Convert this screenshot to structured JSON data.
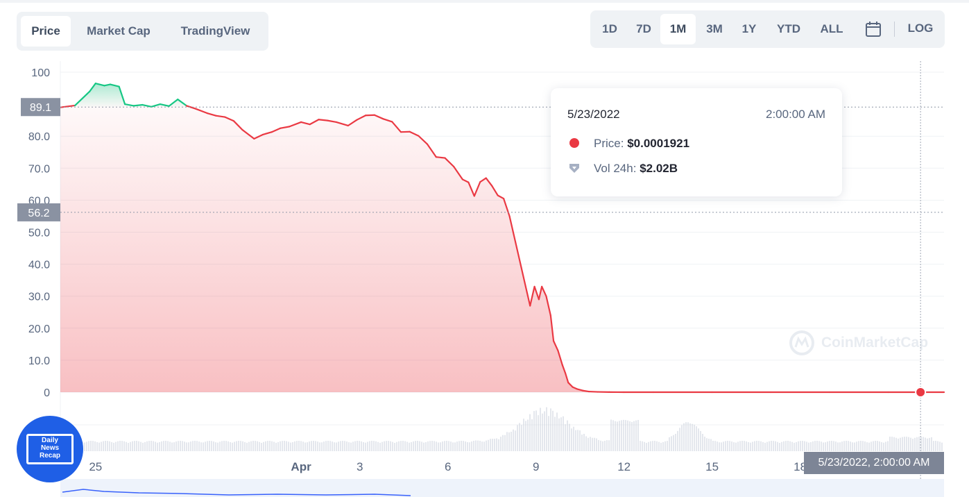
{
  "tabs": [
    {
      "label": "Price",
      "active": true
    },
    {
      "label": "Market Cap",
      "active": false
    },
    {
      "label": "TradingView",
      "active": false
    }
  ],
  "ranges": [
    {
      "label": "1D",
      "active": false
    },
    {
      "label": "7D",
      "active": false
    },
    {
      "label": "1M",
      "active": true
    },
    {
      "label": "3M",
      "active": false
    },
    {
      "label": "1Y",
      "active": false
    },
    {
      "label": "YTD",
      "active": false
    },
    {
      "label": "ALL",
      "active": false
    }
  ],
  "log_label": "LOG",
  "calendar_icon": "calendar-icon",
  "tooltip": {
    "date": "5/23/2022",
    "time": "2:00:00 AM",
    "price_label": "Price:",
    "price_value": "$0.0001921",
    "vol_label": "Vol 24h:",
    "vol_value": "$2.02B"
  },
  "watermark": "CoinMarketCap",
  "badge": {
    "line1": "Daily",
    "line2": "News",
    "line3": "Recap"
  },
  "hover_x_label": "5/23/2022, 2:00:00 AM",
  "colors": {
    "up": "#16c784",
    "down": "#ea3943",
    "grid": "#eff2f5",
    "text": "#58667e"
  },
  "chart_data": {
    "type": "line",
    "ylim": [
      0,
      100
    ],
    "y_ticks": [
      "100",
      "80.0",
      "70.0",
      "60.0",
      "50.0",
      "40.0",
      "30.0",
      "20.0",
      "10.0",
      "0"
    ],
    "y_tick_values": [
      100,
      80,
      70,
      60,
      50,
      40,
      30,
      20,
      10,
      0
    ],
    "x_ticks": [
      "25",
      "Apr",
      "3",
      "6",
      "9",
      "12",
      "15",
      "18"
    ],
    "x_tick_days": [
      25,
      32,
      34,
      37,
      40,
      43,
      46,
      49
    ],
    "xlim": [
      23.8,
      53.9
    ],
    "reference_lines": [
      {
        "label": "89.1",
        "value": 89.1
      },
      {
        "label": "56.2",
        "value": 56.2
      }
    ],
    "hover_point": {
      "day": 53.1,
      "value": 0.0001921
    },
    "series": [
      {
        "x": [
          23.8,
          24.3,
          24.8,
          25.0,
          25.3,
          25.5,
          25.8,
          26.0,
          26.3,
          26.6,
          26.9,
          27.2,
          27.5,
          27.8,
          28.1,
          28.4,
          28.8,
          29.1,
          29.4,
          29.7,
          30.0,
          30.4,
          30.7,
          31.0,
          31.3,
          31.6,
          32.0,
          32.3,
          32.6,
          32.9,
          33.2,
          33.6,
          33.9,
          34.2,
          34.5,
          34.8,
          35.1,
          35.4,
          35.7,
          36.0,
          36.3,
          36.6,
          36.9,
          37.2,
          37.5,
          37.7,
          37.9,
          38.1,
          38.3,
          38.5,
          38.7,
          38.9,
          39.1,
          39.3,
          39.5,
          39.7,
          39.8,
          39.95,
          40.1,
          40.2,
          40.35,
          40.5,
          40.6,
          40.75,
          40.9,
          41.0,
          41.1,
          41.25,
          41.4,
          41.6,
          41.8,
          42.1,
          42.5,
          43.0,
          44.0,
          46.0,
          48.0,
          50.0,
          52.0,
          53.1,
          53.9
        ],
        "y": [
          89.0,
          89.6,
          94.0,
          96.5,
          95.8,
          96.2,
          95.5,
          90.0,
          89.5,
          89.8,
          89.2,
          90.0,
          89.4,
          91.5,
          89.5,
          88.6,
          87.2,
          86.4,
          86.0,
          84.8,
          82.0,
          79.2,
          80.5,
          81.3,
          82.5,
          83.0,
          84.4,
          83.7,
          85.2,
          84.9,
          84.4,
          83.3,
          85.1,
          86.5,
          86.6,
          85.4,
          84.5,
          81.3,
          81.4,
          80.1,
          77.5,
          73.5,
          73.2,
          70.5,
          66.5,
          65.6,
          61.3,
          65.7,
          66.9,
          64.5,
          61.5,
          60.5,
          55.0,
          47.0,
          39.0,
          31.0,
          27.0,
          33.0,
          29.0,
          33.0,
          30.0,
          24.0,
          16.0,
          13.0,
          8.5,
          6.0,
          3.0,
          1.6,
          1.0,
          0.5,
          0.2,
          0.1,
          0.03,
          0.001,
          0.0003,
          0.0002,
          0.0002,
          0.0002,
          0.0002,
          0.0001921,
          0.0002
        ]
      }
    ]
  }
}
